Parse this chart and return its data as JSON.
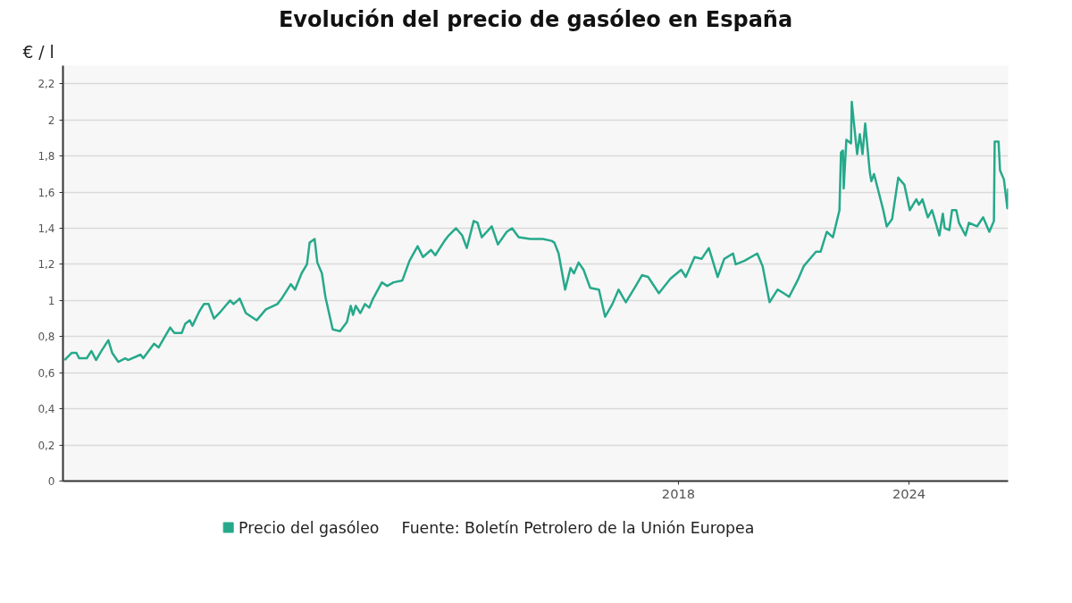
{
  "chart_data": {
    "type": "line",
    "title": "Evolución del precio de gasóleo en España",
    "ylabel": "€ / l",
    "annotations": [
      "Fuente: Boletín Petrolero de la Unión Europea"
    ],
    "x": [
      2002.02,
      2002.21,
      2002.33,
      2002.4,
      2002.6,
      2002.72,
      2002.84,
      2002.98,
      2003.16,
      2003.26,
      2003.42,
      2003.6,
      2003.67,
      2004.0,
      2004.07,
      2004.35,
      2004.47,
      2004.77,
      2004.88,
      2005.07,
      2005.16,
      2005.28,
      2005.35,
      2005.53,
      2005.65,
      2005.77,
      2005.91,
      2006.05,
      2006.33,
      2006.42,
      2006.58,
      2006.74,
      2007.02,
      2007.26,
      2007.56,
      2007.67,
      2007.91,
      2008.02,
      2008.19,
      2008.33,
      2008.4,
      2008.53,
      2008.6,
      2008.72,
      2008.81,
      2009.0,
      2009.19,
      2009.37,
      2009.47,
      2009.53,
      2009.6,
      2009.72,
      2009.84,
      2009.95,
      2010.05,
      2010.28,
      2010.42,
      2010.58,
      2010.81,
      2011.0,
      2011.21,
      2011.35,
      2011.56,
      2011.67,
      2011.91,
      2012.02,
      2012.21,
      2012.37,
      2012.49,
      2012.67,
      2012.77,
      2012.88,
      2013.14,
      2013.3,
      2013.53,
      2013.67,
      2013.84,
      2014.14,
      2014.47,
      2014.7,
      2014.77,
      2014.88,
      2015.05,
      2015.19,
      2015.28,
      2015.4,
      2015.53,
      2015.7,
      2015.93,
      2016.09,
      2016.28,
      2016.44,
      2016.63,
      2016.86,
      2017.05,
      2017.21,
      2017.49,
      2017.79,
      2018.07,
      2018.19,
      2018.42,
      2018.6,
      2018.79,
      2019.02,
      2019.19,
      2019.42,
      2019.49,
      2019.72,
      2020.05,
      2020.19,
      2020.37,
      2020.58,
      2020.74,
      2020.88,
      2021.12,
      2021.26,
      2021.58,
      2021.7,
      2021.86,
      2022.02,
      2022.19,
      2022.23,
      2022.28,
      2022.3,
      2022.37,
      2022.49,
      2022.51,
      2022.65,
      2022.72,
      2022.79,
      2022.86,
      2022.98,
      2023.02,
      2023.09,
      2023.21,
      2023.33,
      2023.42,
      2023.56,
      2023.72,
      2023.88,
      2024.02,
      2024.19,
      2024.26,
      2024.35,
      2024.49,
      2024.6,
      2024.79,
      2024.88,
      2024.93,
      2025.05,
      2025.12,
      2025.23,
      2025.3,
      2025.47,
      2025.56,
      2025.77,
      2025.93,
      2026.09,
      2026.21,
      2026.23,
      2026.33,
      2026.37,
      2026.47,
      2026.56,
      2026.58
    ],
    "series": [
      {
        "name": "Precio del gasóleo",
        "color": "#26a98b",
        "values": [
          0.67,
          0.71,
          0.71,
          0.68,
          0.68,
          0.72,
          0.67,
          0.72,
          0.78,
          0.71,
          0.66,
          0.68,
          0.67,
          0.7,
          0.68,
          0.76,
          0.74,
          0.85,
          0.82,
          0.82,
          0.87,
          0.89,
          0.86,
          0.94,
          0.98,
          0.98,
          0.9,
          0.93,
          1.0,
          0.98,
          1.01,
          0.93,
          0.89,
          0.95,
          0.98,
          1.01,
          1.09,
          1.06,
          1.15,
          1.2,
          1.32,
          1.34,
          1.21,
          1.15,
          1.02,
          0.84,
          0.83,
          0.88,
          0.97,
          0.92,
          0.97,
          0.93,
          0.98,
          0.96,
          1.01,
          1.1,
          1.08,
          1.1,
          1.11,
          1.22,
          1.3,
          1.24,
          1.28,
          1.25,
          1.33,
          1.36,
          1.4,
          1.36,
          1.29,
          1.44,
          1.43,
          1.35,
          1.41,
          1.31,
          1.38,
          1.4,
          1.35,
          1.34,
          1.34,
          1.33,
          1.32,
          1.26,
          1.06,
          1.18,
          1.15,
          1.21,
          1.17,
          1.07,
          1.06,
          0.91,
          0.98,
          1.06,
          0.99,
          1.07,
          1.14,
          1.13,
          1.04,
          1.12,
          1.17,
          1.13,
          1.24,
          1.23,
          1.29,
          1.13,
          1.23,
          1.26,
          1.2,
          1.22,
          1.26,
          1.19,
          0.99,
          1.06,
          1.04,
          1.02,
          1.12,
          1.19,
          1.27,
          1.27,
          1.38,
          1.35,
          1.5,
          1.82,
          1.83,
          1.62,
          1.89,
          1.87,
          2.1,
          1.81,
          1.92,
          1.81,
          1.98,
          1.71,
          1.66,
          1.7,
          1.6,
          1.5,
          1.41,
          1.45,
          1.68,
          1.64,
          1.5,
          1.56,
          1.53,
          1.56,
          1.46,
          1.5,
          1.36,
          1.48,
          1.4,
          1.39,
          1.5,
          1.5,
          1.43,
          1.36,
          1.43,
          1.41,
          1.46,
          1.38,
          1.44,
          1.88,
          1.88,
          1.72,
          1.67,
          1.51,
          1.62
        ]
      }
    ],
    "xlim": [
      2001.98,
      2026.58
    ],
    "xticks": [
      2018,
      2024
    ],
    "ylim": [
      0,
      2.3
    ],
    "yticks": [
      0,
      {
        "value": 0.2,
        "label": "0,2"
      },
      {
        "value": 0.4,
        "label": "0,4"
      },
      {
        "value": 0.6,
        "label": "0,6"
      },
      {
        "value": 0.8,
        "label": "0,8"
      },
      1,
      {
        "value": 1.2,
        "label": "1,2"
      },
      {
        "value": 1.4,
        "label": "1,4"
      },
      {
        "value": 1.6,
        "label": "1,6"
      },
      {
        "value": 1.8,
        "label": "1,8"
      },
      2,
      {
        "value": 2.2,
        "label": "2,2"
      }
    ],
    "grid": "y",
    "legend": "bottom",
    "marker": "none",
    "line_style": "solid"
  }
}
